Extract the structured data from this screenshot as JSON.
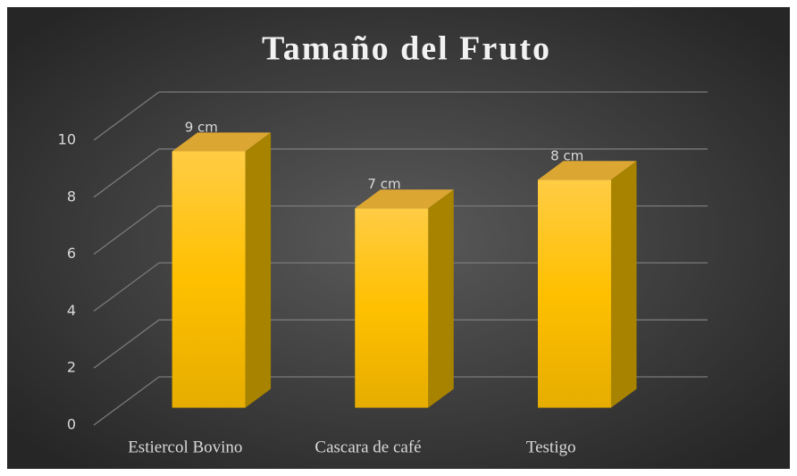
{
  "chart_data": {
    "type": "bar3d",
    "title": "Tamaño del Fruto",
    "categories": [
      "Estiercol Bovino",
      "Cascara de café",
      "Testigo"
    ],
    "values": [
      9,
      7,
      8
    ],
    "value_labels": [
      "9 cm",
      "7 cm",
      "8 cm"
    ],
    "color": "#ffc000",
    "ylim": [
      0,
      10
    ],
    "yticks": [
      0,
      2,
      4,
      6,
      8,
      10
    ],
    "grid": true
  }
}
